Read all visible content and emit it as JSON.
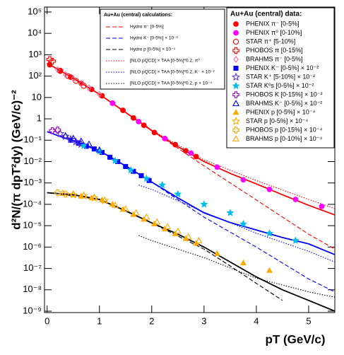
{
  "chart_data": {
    "type": "scatter",
    "y_label": "d²N/(π dpT²dy) (GeV/c)⁻²",
    "x_label": "pT (GeV/c)",
    "xlim": [
      -0.05,
      5.5
    ],
    "ylim": [
      8.6e-10,
      170000
    ],
    "yscale": "log",
    "xticks": [
      0,
      1,
      2,
      3,
      4,
      5
    ],
    "yticks": [
      {
        "value": 100000,
        "label": "10⁵"
      },
      {
        "value": 10000,
        "label": "10⁴"
      },
      {
        "value": 1000,
        "label": "10³"
      },
      {
        "value": 100,
        "label": "10²"
      },
      {
        "value": 10,
        "label": "10"
      },
      {
        "value": 1,
        "label": "1"
      },
      {
        "value": 0.1,
        "label": "10⁻¹"
      },
      {
        "value": 0.01,
        "label": "10⁻²"
      },
      {
        "value": 0.001,
        "label": "10⁻³"
      },
      {
        "value": 0.0001,
        "label": "10⁻⁴"
      },
      {
        "value": 1e-05,
        "label": "10⁻⁵"
      },
      {
        "value": 1e-06,
        "label": "10⁻⁶"
      },
      {
        "value": 1e-07,
        "label": "10⁻⁷"
      },
      {
        "value": 1e-08,
        "label": "10⁻⁸"
      },
      {
        "value": 1e-09,
        "label": "10⁻⁹"
      }
    ],
    "data_legend_title": "Au+Au (central) data:",
    "calc_legend_title": "Au+Au (central) calculations:",
    "series": [
      {
        "name": "PHENIX π⁻ [0-5%]",
        "legend": "data",
        "color": "#ff0000",
        "marker": "circle",
        "x": [
          0.05,
          0.25,
          0.45,
          0.65,
          0.85,
          1.05,
          1.25,
          1.45,
          1.65,
          1.85,
          2.05,
          2.25,
          2.45,
          2.65,
          2.85
        ],
        "values": [
          340,
          170,
          89,
          46,
          24,
          12,
          5.4,
          2.5,
          1.1,
          0.5,
          0.23,
          0.12,
          0.062,
          0.032,
          0.017
        ]
      },
      {
        "name": "PHENIX π⁰ [0-10%]",
        "legend": "data",
        "color": "#ff00ff",
        "marker": "circle",
        "x": [
          1.25,
          1.75,
          2.25,
          2.75,
          3.25,
          3.75,
          4.25,
          4.75,
          5.25
        ],
        "values": [
          5.4,
          0.74,
          0.12,
          0.025,
          0.0055,
          0.0014,
          0.0005,
          0.00017,
          8e-05
        ]
      },
      {
        "name": "STAR π⁺ [5-10%]",
        "legend": "data",
        "color": "#ff0000",
        "marker": "open-circle",
        "x": [
          0.25,
          0.4,
          0.55,
          0.7
        ],
        "values": [
          180,
          100,
          60,
          35
        ]
      },
      {
        "name": "PHOBOS π [0-15%]",
        "legend": "data",
        "color": "#ff0000",
        "marker": "open-plus",
        "x": [
          0.05,
          0.1
        ],
        "values": [
          600,
          500
        ]
      },
      {
        "name": "BRAHMS π⁻ [0-5%]",
        "legend": "data",
        "color": "#ff6699",
        "marker": "open-diamond",
        "x": [
          0.2,
          0.35,
          0.5,
          0.65,
          0.8,
          1.0
        ],
        "values": [
          200,
          120,
          75,
          45,
          28,
          14
        ]
      },
      {
        "name": "PHENIX K⁻ [0-5%] × 10⁻²",
        "legend": "data",
        "color": "#0000ff",
        "marker": "square",
        "x": [
          0.45,
          0.6,
          0.75,
          0.9,
          1.05,
          1.2,
          1.35,
          1.5,
          1.65,
          1.8,
          1.95
        ],
        "values": [
          0.1,
          0.072,
          0.052,
          0.039,
          0.027,
          0.016,
          0.01,
          0.0059,
          0.0035,
          0.0022,
          0.0013
        ]
      },
      {
        "name": "STAR K⁺ [5-10%] × 10⁻²",
        "legend": "data",
        "color": "#6633cc",
        "marker": "open-star",
        "x": [
          0.25,
          0.35,
          0.45,
          0.55,
          0.65
        ],
        "values": [
          0.2,
          0.15,
          0.11,
          0.085,
          0.065
        ]
      },
      {
        "name": "STAR K⁰s [0-5%] × 10⁻²",
        "legend": "data",
        "color": "#00bbee",
        "marker": "star",
        "x": [
          0.7,
          1.0,
          1.3,
          1.6,
          1.9,
          2.2,
          2.5,
          3.0,
          3.5,
          3.75,
          4.25,
          4.75
        ],
        "values": [
          0.055,
          0.03,
          0.011,
          0.004,
          0.0016,
          0.0008,
          0.0003,
          0.0001,
          4e-05,
          1.2e-05,
          4.4e-06,
          2e-06
        ]
      },
      {
        "name": "PHOBOS K [0-15%] × 10⁻²",
        "legend": "data",
        "color": "#9900cc",
        "marker": "open-plus",
        "x": [
          0.1,
          0.2
        ],
        "values": [
          0.28,
          0.3
        ]
      },
      {
        "name": "BRAHMS K⁻ [0-5%] × 10⁻²",
        "legend": "data",
        "color": "#0000ff",
        "marker": "open-triangle",
        "x": [
          0.35,
          0.5,
          0.65,
          0.8,
          1.0
        ],
        "values": [
          0.16,
          0.12,
          0.09,
          0.065,
          0.035
        ]
      },
      {
        "name": "PHENIX p [0-5%] × 10⁻⁴",
        "legend": "data",
        "color": "#ffaa00",
        "marker": "triangle",
        "x": [
          0.65,
          0.85,
          1.05,
          1.25,
          1.45,
          1.65,
          1.85,
          2.05,
          2.25,
          2.45,
          2.65,
          2.85,
          3.25,
          3.75,
          4.25
        ],
        "values": [
          0.00024,
          0.0002,
          0.00016,
          0.0001,
          5.8e-05,
          3.3e-05,
          2e-05,
          1.2e-05,
          7e-06,
          4.2e-06,
          2.5e-06,
          1.5e-06,
          5e-07,
          1.8e-07,
          8e-08
        ]
      },
      {
        "name": "STAR p [0-5%] × 10⁻⁴",
        "legend": "data",
        "color": "#ffaa00",
        "marker": "open-star",
        "x": [
          0.5,
          0.7,
          0.9,
          1.1
        ],
        "values": [
          0.00028,
          0.00025,
          0.0002,
          0.00015
        ]
      },
      {
        "name": "PHOBOS p [0-15%] × 10⁻⁴",
        "legend": "data",
        "color": "#ffaa00",
        "marker": "open-plus",
        "x": [
          0.2,
          0.35
        ],
        "values": [
          0.00035,
          0.0003
        ]
      },
      {
        "name": "BRAHMS p [0-10%] × 10⁻⁴",
        "legend": "data",
        "color": "#ffaa00",
        "marker": "open-triangle",
        "x": [
          0.3,
          0.5,
          0.7,
          0.9,
          1.1,
          1.3,
          1.5,
          1.7,
          1.9,
          2.1,
          2.3,
          2.5,
          2.7,
          2.9
        ],
        "values": [
          0.00033,
          0.0003,
          0.00026,
          0.00021,
          0.00015,
          9e-05,
          6e-05,
          4e-05,
          2.5e-05,
          1.5e-05,
          9e-06,
          5.5e-06,
          3e-06,
          2e-06
        ]
      },
      {
        "name": "Hydro π⁻ [0-5%]",
        "legend": "calc",
        "color": "#ff0000",
        "style": "dashed",
        "x": [
          0,
          1,
          2,
          3,
          4,
          5,
          5.5
        ],
        "values": [
          400,
          14,
          0.28,
          0.0063,
          0.00016,
          4e-06,
          8e-07
        ]
      },
      {
        "name": "Hydro K⁻ [0-5%] × 10⁻²",
        "legend": "calc",
        "color": "#0000ff",
        "style": "dashed",
        "x": [
          0,
          1,
          2,
          3,
          4,
          5,
          5.5
        ],
        "values": [
          0.25,
          0.032,
          0.0011,
          2.5e-05,
          1e-06,
          3.2e-08,
          8e-09
        ]
      },
      {
        "name": "Hydro p [0-5%] × 10⁻⁴",
        "legend": "calc",
        "color": "#000000",
        "style": "dashed",
        "x": [
          0,
          1,
          2,
          3,
          3.5,
          4,
          4.5
        ],
        "values": [
          0.00035,
          0.00017,
          1.35e-05,
          8e-07,
          1.3e-07,
          2e-08,
          3.2e-09
        ]
      },
      {
        "name": "[NLO pQCD] × TAA [0-5%]*0.2, π⁰",
        "legend": "calc",
        "color": "#ff0000",
        "style": "dotted",
        "x": [
          1.75,
          2,
          3,
          4,
          5,
          5.5
        ],
        "values": [
          0.85,
          0.3,
          0.012,
          0.0013,
          0.00017,
          6.3e-05
        ]
      },
      {
        "name": "[NLO pQCD] × TAA [0-5%]*0.2, K⁻ × 10⁻²",
        "legend": "calc",
        "color": "#0000ff",
        "style": "dotted",
        "x": [
          1.75,
          2,
          3,
          4,
          5,
          5.5
        ],
        "values": [
          0.0008,
          0.0005,
          4.3e-05,
          4.4e-06,
          6.3e-07,
          2e-07
        ]
      },
      {
        "name": "[NLO pQCD] × TAA [0-5%]*0.2, p × 10⁻⁴",
        "legend": "calc",
        "color": "#000000",
        "style": "dotted",
        "x": [
          1.75,
          2,
          3,
          4,
          5,
          5.5
        ],
        "values": [
          3.5e-06,
          2e-06,
          3.2e-07,
          3.5e-08,
          8e-09,
          4.5e-09
        ]
      },
      {
        "color": "#ff0000",
        "style": "solid",
        "x": [
          0,
          0.5,
          1,
          1.5,
          2,
          2.5,
          3,
          3.5,
          4,
          4.5,
          5,
          5.5
        ],
        "values": [
          400,
          80,
          14,
          2,
          0.28,
          0.05,
          0.01,
          0.0028,
          0.0009,
          0.00028,
          9e-05,
          3.2e-05
        ]
      },
      {
        "color": "#0000ff",
        "style": "solid",
        "x": [
          0,
          0.5,
          1,
          1.5,
          2,
          2.5,
          3,
          3.5,
          4,
          4.5,
          5,
          5.5
        ],
        "values": [
          0.25,
          0.09,
          0.032,
          0.0063,
          0.0011,
          0.0002,
          4e-05,
          1.4e-05,
          6.3e-06,
          2.8e-06,
          1.4e-06,
          4.4e-07
        ]
      },
      {
        "color": "#000000",
        "style": "solid",
        "x": [
          0,
          0.5,
          1,
          1.5,
          2,
          2.5,
          3,
          3.5,
          4,
          4.5,
          5,
          5.5
        ],
        "values": [
          0.00035,
          0.00028,
          0.00017,
          5e-05,
          1.35e-05,
          4e-06,
          1e-06,
          2e-07,
          4e-08,
          1e-08,
          3.2e-09,
          1e-09
        ]
      }
    ]
  }
}
